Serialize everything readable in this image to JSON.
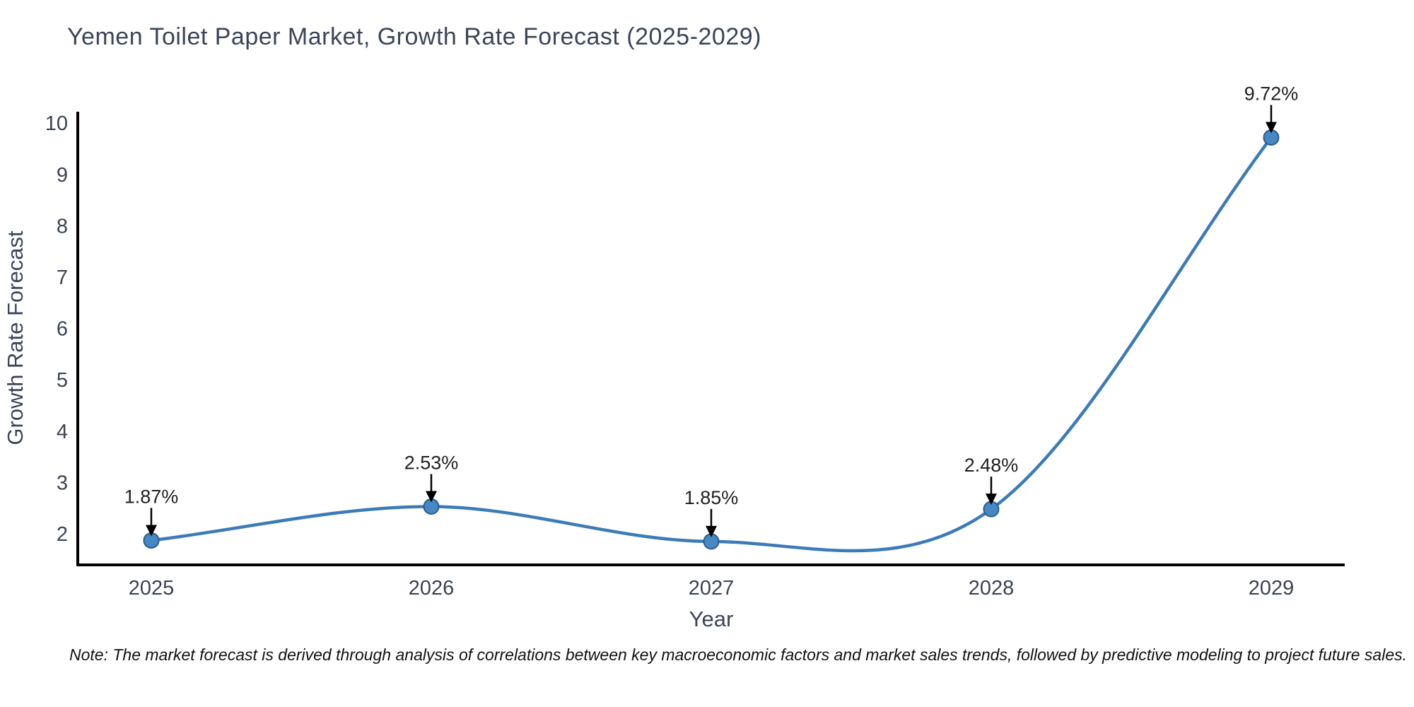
{
  "chart_data": {
    "type": "line",
    "title": "Yemen Toilet Paper Market, Growth Rate Forecast (2025-2029)",
    "xlabel": "Year",
    "ylabel": "Growth Rate Forecast",
    "x": [
      2025,
      2026,
      2027,
      2028,
      2029
    ],
    "x_tick_labels": [
      "2025",
      "2026",
      "2027",
      "2028",
      "2029"
    ],
    "values": [
      1.87,
      2.53,
      1.85,
      2.48,
      9.72
    ],
    "point_labels": [
      "1.87%",
      "2.53%",
      "1.85%",
      "2.48%",
      "9.72%"
    ],
    "y_ticks": [
      2,
      3,
      4,
      5,
      6,
      7,
      8,
      9,
      10
    ],
    "y_tick_labels": [
      "2",
      "3",
      "4",
      "5",
      "6",
      "7",
      "8",
      "9",
      "10"
    ],
    "ylim": [
      1.4,
      10.85
    ],
    "grid": false,
    "legend": "none",
    "smooth_curve": true,
    "note": "Note: The market forecast is derived through analysis of correlations between key macroeconomic factors and market sales trends, followed by predictive modeling to project future sales.",
    "colors": {
      "line": "#3b7bb8",
      "marker_fill": "#4588c4",
      "marker_edge": "#2b5c8e",
      "axis_spine": "#000000",
      "tick_label": "#3b4350",
      "title": "#3b4458",
      "annotation_text": "#1f1f1f",
      "annotation_arrow": "#000000",
      "background": "#ffffff"
    }
  }
}
